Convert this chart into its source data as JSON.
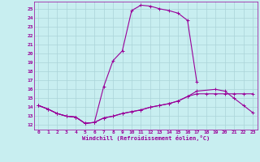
{
  "xlabel": "Windchill (Refroidissement éolien,°C)",
  "bg_color": "#c8eef0",
  "grid_color": "#aad4d8",
  "line_color": "#990099",
  "xlim": [
    -0.5,
    23.5
  ],
  "ylim": [
    11.5,
    25.8
  ],
  "yticks": [
    12,
    13,
    14,
    15,
    16,
    17,
    18,
    19,
    20,
    21,
    22,
    23,
    24,
    25
  ],
  "xticks": [
    0,
    1,
    2,
    3,
    4,
    5,
    6,
    7,
    8,
    9,
    10,
    11,
    12,
    13,
    14,
    15,
    16,
    17,
    18,
    19,
    20,
    21,
    22,
    23
  ],
  "curve1_x": [
    0,
    1,
    2,
    3,
    4,
    5,
    6,
    7,
    8,
    9,
    10,
    11,
    12,
    13,
    14,
    15,
    16,
    17
  ],
  "curve1_y": [
    14.2,
    13.8,
    13.3,
    13.0,
    12.9,
    12.2,
    12.3,
    16.3,
    19.2,
    20.3,
    24.8,
    25.4,
    25.3,
    25.0,
    24.8,
    24.5,
    23.7,
    16.8
  ],
  "curve2_x": [
    0,
    1,
    2,
    3,
    4,
    5,
    6,
    7,
    8,
    9,
    10,
    11,
    12,
    13,
    14,
    15,
    16,
    17,
    19,
    20,
    21,
    22,
    23
  ],
  "curve2_y": [
    14.2,
    13.8,
    13.3,
    13.0,
    12.9,
    12.2,
    12.3,
    12.8,
    13.0,
    13.3,
    13.5,
    13.7,
    14.0,
    14.2,
    14.4,
    14.7,
    15.2,
    15.8,
    16.0,
    15.8,
    15.0,
    14.2,
    13.4
  ],
  "curve3_x": [
    0,
    1,
    2,
    3,
    4,
    5,
    6,
    7,
    8,
    9,
    10,
    11,
    12,
    13,
    14,
    15,
    16,
    17,
    18,
    19,
    20,
    21,
    22,
    23
  ],
  "curve3_y": [
    14.2,
    13.8,
    13.3,
    13.0,
    12.9,
    12.2,
    12.3,
    12.8,
    13.0,
    13.3,
    13.5,
    13.7,
    14.0,
    14.2,
    14.4,
    14.7,
    15.2,
    15.5,
    15.5,
    15.5,
    15.5,
    15.5,
    15.5,
    15.5
  ]
}
